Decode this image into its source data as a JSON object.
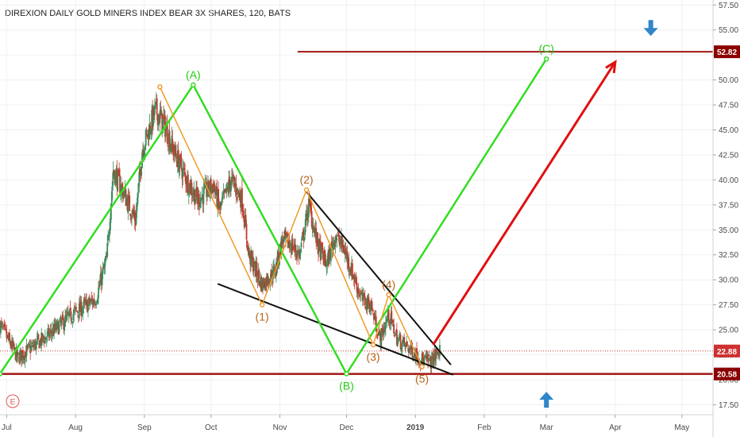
{
  "title": "DIREXION DAILY GOLD MINERS INDEX BEAR 3X SHARES, 120, BATS",
  "event_marker": "E",
  "colors": {
    "candle_up": "#3b8a5a",
    "candle_down": "#c0392b",
    "wave_green": "#33dd22",
    "wave_orange": "#f19a2a",
    "trend_black": "#111111",
    "target_line": "#a31515",
    "arrow_red": "#e01010",
    "arrow_blue": "#2f86c8",
    "price_tag": "#d03030",
    "support_tag": "#8b0000"
  },
  "chart_data": {
    "type": "candlestick",
    "xlabels": [
      "Jul",
      "Aug",
      "Sep",
      "Oct",
      "Nov",
      "Dec",
      "2019",
      "Feb",
      "Mar",
      "Apr",
      "May"
    ],
    "xticks": [
      "2018-07-01",
      "2018-08-01",
      "2018-09-01",
      "2018-10-01",
      "2018-11-01",
      "2018-12-01",
      "2019-01-01",
      "2019-02-01",
      "2019-03-01",
      "2019-04-01",
      "2019-05-01"
    ],
    "xlim": [
      "2018-06-28",
      "2019-05-15"
    ],
    "yticks": [
      17.5,
      20,
      22.5,
      25,
      27.5,
      30,
      32.5,
      35,
      37.5,
      40,
      42.5,
      45,
      47.5,
      50,
      52.5,
      55,
      57.5
    ],
    "ylim": [
      16.5,
      58
    ],
    "price_anchors": [
      {
        "date": "2018-06-28",
        "price": 25.5
      },
      {
        "date": "2018-07-06",
        "price": 22.2
      },
      {
        "date": "2018-07-20",
        "price": 24.5
      },
      {
        "date": "2018-08-01",
        "price": 26.8
      },
      {
        "date": "2018-08-10",
        "price": 28.0
      },
      {
        "date": "2018-08-15",
        "price": 32.0
      },
      {
        "date": "2018-08-18",
        "price": 41.0
      },
      {
        "date": "2018-08-22",
        "price": 39.0
      },
      {
        "date": "2018-08-28",
        "price": 36.0
      },
      {
        "date": "2018-08-31",
        "price": 43.0
      },
      {
        "date": "2018-09-06",
        "price": 47.0
      },
      {
        "date": "2018-09-10",
        "price": 45.5
      },
      {
        "date": "2018-09-14",
        "price": 43.0
      },
      {
        "date": "2018-09-20",
        "price": 40.0
      },
      {
        "date": "2018-09-25",
        "price": 38.0
      },
      {
        "date": "2018-10-02",
        "price": 39.5
      },
      {
        "date": "2018-10-05",
        "price": 37.0
      },
      {
        "date": "2018-10-10",
        "price": 40.0
      },
      {
        "date": "2018-10-15",
        "price": 38.0
      },
      {
        "date": "2018-10-18",
        "price": 32.5
      },
      {
        "date": "2018-10-24",
        "price": 29.5
      },
      {
        "date": "2018-10-30",
        "price": 31.0
      },
      {
        "date": "2018-11-02",
        "price": 34.0
      },
      {
        "date": "2018-11-06",
        "price": 33.5
      },
      {
        "date": "2018-11-10",
        "price": 32.5
      },
      {
        "date": "2018-11-14",
        "price": 37.5
      },
      {
        "date": "2018-11-18",
        "price": 33.5
      },
      {
        "date": "2018-11-22",
        "price": 31.5
      },
      {
        "date": "2018-11-26",
        "price": 34.5
      },
      {
        "date": "2018-11-30",
        "price": 33.0
      },
      {
        "date": "2018-12-04",
        "price": 30.5
      },
      {
        "date": "2018-12-08",
        "price": 28.0
      },
      {
        "date": "2018-12-12",
        "price": 27.5
      },
      {
        "date": "2018-12-16",
        "price": 24.0
      },
      {
        "date": "2018-12-20",
        "price": 26.5
      },
      {
        "date": "2018-12-24",
        "price": 24.0
      },
      {
        "date": "2018-12-30",
        "price": 23.0
      },
      {
        "date": "2019-01-04",
        "price": 22.0
      },
      {
        "date": "2019-01-08",
        "price": 21.8
      },
      {
        "date": "2019-01-12",
        "price": 22.9
      }
    ],
    "waves": {
      "green": [
        {
          "date": "2018-06-28",
          "price": 20.6
        },
        {
          "date": "2018-09-23",
          "price": 49.5,
          "label": "(A)"
        },
        {
          "date": "2018-12-01",
          "price": 20.6,
          "label": "(B)"
        },
        {
          "date": "2019-03-01",
          "price": 52.1,
          "label": "(C)"
        }
      ],
      "orange": [
        {
          "date": "2018-09-08",
          "price": 49.3
        },
        {
          "date": "2018-10-24",
          "price": 27.5,
          "label": "(1)"
        },
        {
          "date": "2018-11-13",
          "price": 39.0,
          "label": "(2)"
        },
        {
          "date": "2018-12-13",
          "price": 23.5,
          "label": "(3)"
        },
        {
          "date": "2018-12-20",
          "price": 28.5,
          "label": "(4)"
        },
        {
          "date": "2019-01-04",
          "price": 21.3,
          "label": "(5)"
        }
      ]
    },
    "trendlines": [
      {
        "from": {
          "date": "2018-10-04",
          "price": 29.6
        },
        "to": {
          "date": "2019-01-18",
          "price": 20.5
        }
      },
      {
        "from": {
          "date": "2018-11-13",
          "price": 38.8
        },
        "to": {
          "date": "2019-01-17",
          "price": 21.5
        }
      }
    ],
    "target_line": {
      "price": 52.82,
      "from": "2018-11-09"
    },
    "support_line": {
      "price": 20.58
    },
    "current_price_line": {
      "price": 22.88
    },
    "red_arrow": {
      "from": {
        "date": "2019-01-09",
        "price": 23.5
      },
      "to": {
        "date": "2019-04-01",
        "price": 51.8
      }
    },
    "price_tags": {
      "current": "22.88",
      "target": "52.82",
      "support": "20.58"
    },
    "blue_arrows": [
      {
        "direction": "down",
        "date": "2019-04-17",
        "price": 55.2
      },
      {
        "direction": "up",
        "date": "2019-03-01",
        "price": 18.0
      }
    ]
  }
}
